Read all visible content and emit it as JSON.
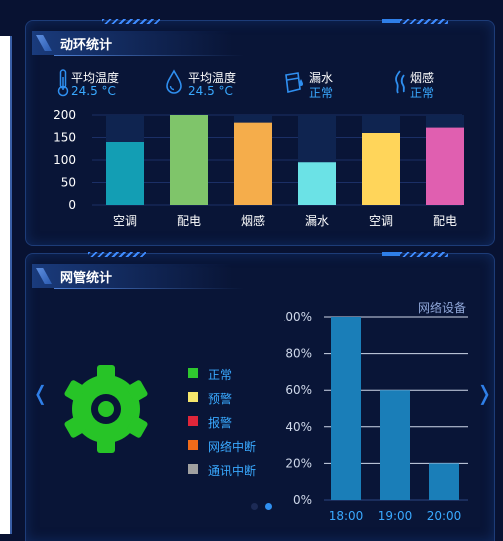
{
  "env_panel": {
    "title": "动环统计",
    "stats": [
      {
        "icon": "thermometer-icon",
        "label": "平均温度",
        "value": "24.5 °C"
      },
      {
        "icon": "water-drop-icon",
        "label": "平均温度",
        "value": "24.5 °C"
      },
      {
        "icon": "water-leak-icon",
        "label": "漏水",
        "value": "正常"
      },
      {
        "icon": "smoke-icon",
        "label": "烟感",
        "value": "正常"
      }
    ]
  },
  "network_panel": {
    "title": "网管统计",
    "legend": [
      {
        "label": "正常",
        "color": "#2fc82f"
      },
      {
        "label": "预警",
        "color": "#f5e66c"
      },
      {
        "label": "报警",
        "color": "#e0263a"
      },
      {
        "label": "网络中断",
        "color": "#ef6b1a"
      },
      {
        "label": "通讯中断",
        "color": "#a0a0a0"
      }
    ],
    "gear_color": "#27c427",
    "pager_active": 2
  },
  "chart_data": [
    {
      "type": "bar",
      "categories": [
        "空调",
        "配电",
        "烟感",
        "漏水",
        "空调",
        "配电"
      ],
      "values": [
        140,
        200,
        183,
        95,
        160,
        172
      ],
      "colors": [
        "#139eb4",
        "#7fc56a",
        "#f5ad4b",
        "#6be2e6",
        "#ffd55a",
        "#e05fb0"
      ],
      "yticks": [
        "0",
        "50",
        "100",
        "150",
        "200"
      ],
      "ylim": [
        0,
        200
      ],
      "background_bar_max": 200
    },
    {
      "type": "bar",
      "title": "网络设备",
      "categories": [
        "18:00",
        "19:00",
        "20:00"
      ],
      "values": [
        100,
        60,
        20
      ],
      "yticks": [
        "0%",
        "20%",
        "40%",
        "60%",
        "80%",
        "100%"
      ],
      "ylim": [
        0,
        100
      ],
      "color": "#1a7eb8"
    }
  ]
}
